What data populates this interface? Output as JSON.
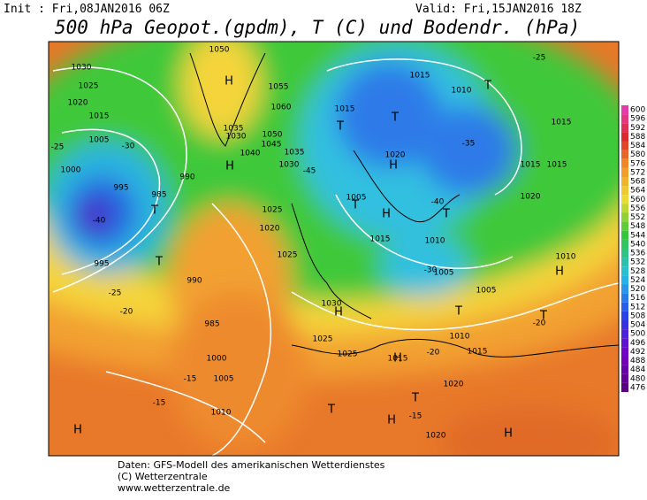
{
  "header": {
    "init": "Init : Fri,08JAN2016 06Z",
    "valid": "Valid: Fri,15JAN2016 18Z",
    "title": "500 hPa Geopot.(gpdm), T (C) und Bodendr. (hPa)"
  },
  "colorbar": {
    "ticks": [
      600,
      596,
      592,
      588,
      584,
      580,
      576,
      572,
      568,
      564,
      560,
      556,
      552,
      548,
      544,
      540,
      536,
      532,
      528,
      524,
      520,
      516,
      512,
      508,
      504,
      500,
      496,
      492,
      488,
      484,
      480,
      476
    ]
  },
  "map": {
    "labels": [
      "1030",
      "1025",
      "1020",
      "1015",
      "1005",
      "1000",
      "995",
      "990",
      "985",
      "995",
      "-25",
      "-30",
      "-40",
      "-25",
      "-20",
      "990",
      "985",
      "1000",
      "1005",
      "1010",
      "-15",
      "-15",
      "1050",
      "1055",
      "1060",
      "1045",
      "1040",
      "1035",
      "1030",
      "1050",
      "1035",
      "1030",
      "1025",
      "1020",
      "1025",
      "1030",
      "1025",
      "1025",
      "1015",
      "1010",
      "1015",
      "1020",
      "1005",
      "1015",
      "1010",
      "1005",
      "1005",
      "1010",
      "1015",
      "1015",
      "1020",
      "1020",
      "1015",
      "1020",
      "1015",
      "1015",
      "1010",
      "-35",
      "-40",
      "-45",
      "-30",
      "-20",
      "-20",
      "-15",
      "-25"
    ],
    "symbols": [
      "H",
      "H",
      "T",
      "T",
      "T",
      "T",
      "T",
      "H",
      "T",
      "H",
      "T",
      "H",
      "T",
      "H",
      "T",
      "H",
      "T",
      "H",
      "H",
      "H",
      "T"
    ]
  },
  "footer": [
    "Daten: GFS-Modell des amerikanischen Wetterdienstes",
    "(C) Wetterzentrale",
    "www.wetterzentrale.de"
  ]
}
